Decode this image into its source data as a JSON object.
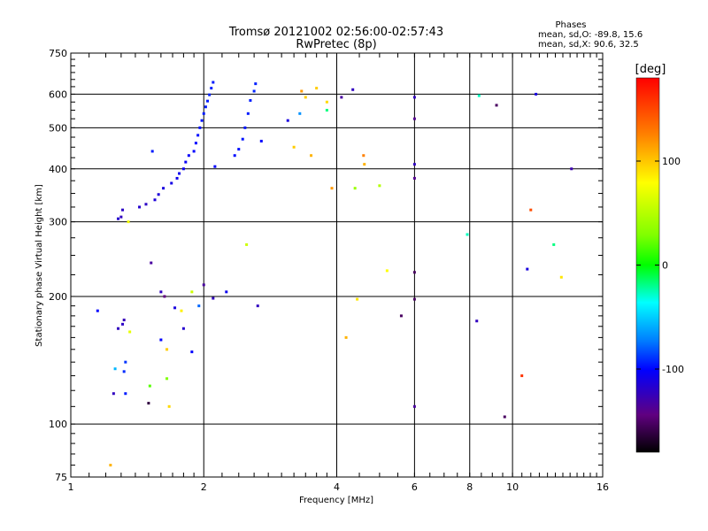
{
  "chart_data": {
    "type": "scatter",
    "title": "Tromsø 20121002 02:56:00-02:57:43",
    "subtitle": "RwPretec (8p)",
    "phases_box": {
      "title": "Phases",
      "line_o": "mean, sd,O: -89.8, 15.6",
      "line_x": "mean, sd,X:  90.6, 32.5"
    },
    "xlabel": "Frequency [MHz]",
    "ylabel": "Stationary phase Virtual Height [km]",
    "x_scale": "log",
    "y_scale": "log",
    "xlim": [
      1,
      16
    ],
    "ylim": [
      75,
      750
    ],
    "x_ticks": [
      1,
      2,
      4,
      6,
      8,
      10,
      16
    ],
    "x_tick_labels": [
      "1",
      "2",
      "4",
      "6",
      "8",
      "10",
      "16"
    ],
    "y_ticks": [
      75,
      100,
      200,
      300,
      400,
      500,
      600,
      750
    ],
    "y_tick_labels": [
      "75",
      "100",
      "200",
      "300",
      "400",
      "500",
      "600",
      "750"
    ],
    "grid": "on",
    "colorbar": {
      "label": "[deg]",
      "range": [
        -180,
        180
      ],
      "ticks": [
        100,
        0,
        -100
      ],
      "tick_labels": [
        "100",
        "0",
        "-100"
      ]
    },
    "points": [
      [
        1.15,
        185,
        -100
      ],
      [
        1.23,
        80,
        110
      ],
      [
        1.25,
        118,
        -120
      ],
      [
        1.26,
        135,
        -60
      ],
      [
        1.28,
        305,
        -115
      ],
      [
        1.28,
        168,
        -120
      ],
      [
        1.3,
        308,
        -120
      ],
      [
        1.31,
        320,
        -118
      ],
      [
        1.31,
        172,
        -118
      ],
      [
        1.32,
        176,
        -122
      ],
      [
        1.32,
        133,
        -92
      ],
      [
        1.33,
        140,
        -90
      ],
      [
        1.33,
        118,
        -95
      ],
      [
        1.35,
        300,
        75
      ],
      [
        1.36,
        165,
        70
      ],
      [
        1.43,
        325,
        -115
      ],
      [
        1.48,
        330,
        -118
      ],
      [
        1.5,
        112,
        -160
      ],
      [
        1.51,
        123,
        20
      ],
      [
        1.52,
        240,
        -130
      ],
      [
        1.53,
        440,
        -95
      ],
      [
        1.55,
        338,
        -112
      ],
      [
        1.58,
        348,
        -112
      ],
      [
        1.6,
        205,
        -120
      ],
      [
        1.6,
        158,
        -100
      ],
      [
        1.62,
        360,
        -110
      ],
      [
        1.63,
        200,
        -140
      ],
      [
        1.65,
        128,
        30
      ],
      [
        1.65,
        150,
        100
      ],
      [
        1.67,
        110,
        95
      ],
      [
        1.69,
        370,
        -108
      ],
      [
        1.72,
        188,
        -110
      ],
      [
        1.74,
        380,
        -106
      ],
      [
        1.76,
        390,
        -105
      ],
      [
        1.78,
        185,
        85
      ],
      [
        1.8,
        168,
        -115
      ],
      [
        1.8,
        400,
        -104
      ],
      [
        1.82,
        415,
        -103
      ],
      [
        1.85,
        430,
        -102
      ],
      [
        1.88,
        205,
        60
      ],
      [
        1.88,
        148,
        -100
      ],
      [
        1.9,
        440,
        -100
      ],
      [
        1.92,
        460,
        -100
      ],
      [
        1.94,
        480,
        -98
      ],
      [
        1.95,
        190,
        -80
      ],
      [
        1.96,
        500,
        -97
      ],
      [
        1.98,
        520,
        -96
      ],
      [
        2.0,
        213,
        -130
      ],
      [
        2.0,
        540,
        -95
      ],
      [
        2.02,
        560,
        -95
      ],
      [
        2.04,
        578,
        -95
      ],
      [
        2.06,
        598,
        -94
      ],
      [
        2.08,
        620,
        -94
      ],
      [
        2.1,
        640,
        -95
      ],
      [
        2.1,
        198,
        -120
      ],
      [
        2.12,
        405,
        -100
      ],
      [
        2.25,
        205,
        -105
      ],
      [
        2.35,
        430,
        -98
      ],
      [
        2.4,
        445,
        -97
      ],
      [
        2.45,
        470,
        -96
      ],
      [
        2.48,
        500,
        -96
      ],
      [
        2.52,
        540,
        -95
      ],
      [
        2.55,
        580,
        -94
      ],
      [
        2.6,
        610,
        -93
      ],
      [
        2.62,
        635,
        -94
      ],
      [
        2.5,
        265,
        60
      ],
      [
        2.65,
        190,
        -120
      ],
      [
        2.7,
        465,
        -100
      ],
      [
        3.1,
        520,
        -110
      ],
      [
        3.2,
        450,
        100
      ],
      [
        3.3,
        540,
        -70
      ],
      [
        3.33,
        610,
        120
      ],
      [
        3.4,
        590,
        100
      ],
      [
        3.5,
        430,
        110
      ],
      [
        3.6,
        620,
        100
      ],
      [
        3.8,
        575,
        95
      ],
      [
        3.8,
        550,
        -20
      ],
      [
        3.9,
        360,
        120
      ],
      [
        4.1,
        590,
        -130
      ],
      [
        4.2,
        160,
        110
      ],
      [
        4.35,
        615,
        -120
      ],
      [
        4.4,
        360,
        40
      ],
      [
        4.45,
        197,
        90
      ],
      [
        4.6,
        430,
        130
      ],
      [
        4.62,
        410,
        110
      ],
      [
        5.0,
        365,
        50
      ],
      [
        5.2,
        230,
        80
      ],
      [
        5.6,
        180,
        -150
      ],
      [
        6.0,
        590,
        -120
      ],
      [
        6.0,
        525,
        -135
      ],
      [
        6.0,
        410,
        -120
      ],
      [
        6.0,
        380,
        -135
      ],
      [
        6.0,
        228,
        -150
      ],
      [
        6.0,
        197,
        -150
      ],
      [
        6.0,
        110,
        -130
      ],
      [
        7.9,
        280,
        -30
      ],
      [
        8.3,
        175,
        -120
      ],
      [
        8.4,
        595,
        -30
      ],
      [
        9.2,
        565,
        -150
      ],
      [
        9.6,
        104,
        -150
      ],
      [
        10.5,
        130,
        160
      ],
      [
        10.8,
        232,
        -110
      ],
      [
        11.0,
        320,
        150
      ],
      [
        11.3,
        600,
        -110
      ],
      [
        12.4,
        265,
        -20
      ],
      [
        12.9,
        222,
        90
      ],
      [
        13.6,
        400,
        -125
      ]
    ]
  }
}
